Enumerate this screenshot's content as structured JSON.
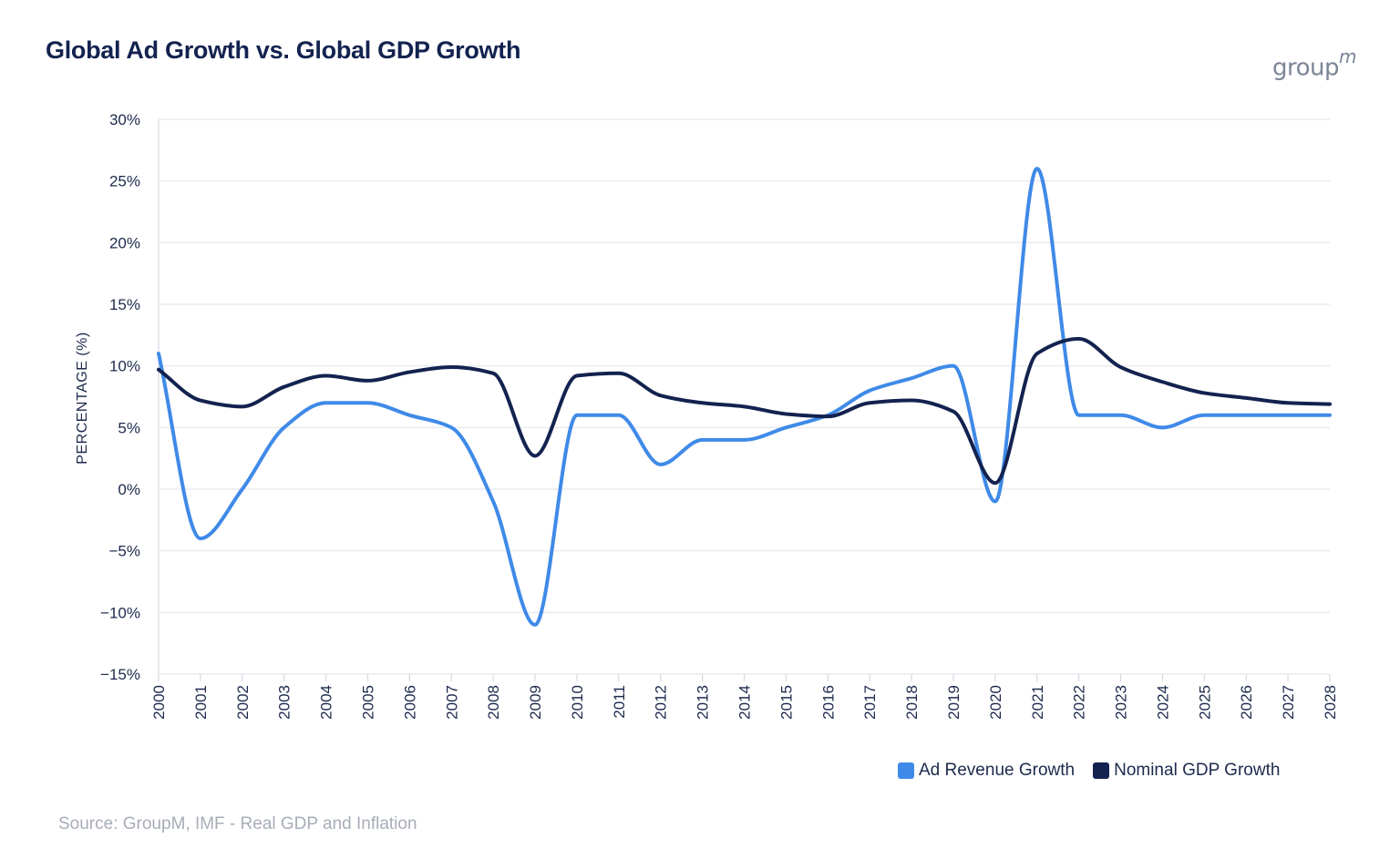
{
  "chart_data": {
    "type": "line",
    "title": "Global Ad Growth vs. Global GDP Growth",
    "xlabel": "",
    "ylabel": "PERCENTAGE (%)",
    "ylim": [
      -15,
      30
    ],
    "yticks": [
      30,
      25,
      20,
      15,
      10,
      5,
      0,
      -5,
      -10,
      -15
    ],
    "ytick_labels": [
      "30%",
      "25%",
      "20%",
      "15%",
      "10%",
      "5%",
      "0%",
      "−5%",
      "−10%",
      "−15%"
    ],
    "categories": [
      "2000",
      "2001",
      "2002",
      "2003",
      "2004",
      "2005",
      "2006",
      "2007",
      "2008",
      "2009",
      "2010",
      "2011",
      "2012",
      "2013",
      "2014",
      "2015",
      "2016",
      "2017",
      "2018",
      "2019",
      "2020",
      "2021",
      "2022",
      "2023",
      "2024",
      "2025",
      "2026",
      "2027",
      "2028"
    ],
    "series": [
      {
        "name": "Ad Revenue Growth",
        "color": "#3f8ae8",
        "values": [
          11,
          -4,
          0,
          5,
          7,
          7,
          6,
          5,
          -1,
          -11,
          6,
          6,
          2,
          4,
          4,
          5,
          6,
          8,
          9,
          10,
          -1,
          26,
          6,
          6,
          5,
          6,
          6,
          6,
          6
        ]
      },
      {
        "name": "Nominal GDP Growth",
        "color": "#13224f",
        "values": [
          9.7,
          7.2,
          6.7,
          8.3,
          9.2,
          8.8,
          9.5,
          9.9,
          9.4,
          2.7,
          9.2,
          9.4,
          7.6,
          7.0,
          6.7,
          6.1,
          5.9,
          7.0,
          7.2,
          6.3,
          0.5,
          11.0,
          12.2,
          9.9,
          8.7,
          7.8,
          7.4,
          7.0,
          6.9
        ]
      }
    ],
    "legend_position": "bottom-right",
    "grid": true
  },
  "logo": {
    "text": "group",
    "suffix": "m"
  },
  "source": "Source: GroupM, IMF - Real GDP and Inflation"
}
